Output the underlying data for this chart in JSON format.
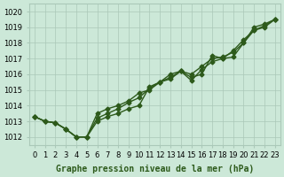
{
  "title": "Graphe pression niveau de la mer (hPa)",
  "xlabel": "Graphe pression niveau de la mer (hPa)",
  "hours": [
    0,
    1,
    2,
    3,
    4,
    5,
    6,
    7,
    8,
    9,
    10,
    11,
    12,
    13,
    14,
    15,
    16,
    17,
    18,
    19,
    20,
    21,
    22,
    23
  ],
  "series1": [
    1013.3,
    1013.0,
    1012.9,
    1012.5,
    1012.0,
    1012.0,
    1013.0,
    1013.3,
    1013.5,
    1013.8,
    1014.0,
    1015.2,
    1015.5,
    1015.8,
    1016.2,
    1015.8,
    1016.0,
    1017.2,
    1017.0,
    1017.1,
    1018.0,
    1019.0,
    1019.2,
    1019.5
  ],
  "series2": [
    1013.3,
    1013.0,
    1012.9,
    1012.5,
    1012.0,
    1012.0,
    1013.5,
    1013.8,
    1014.0,
    1014.3,
    1014.8,
    1015.0,
    1015.5,
    1016.0,
    1016.2,
    1015.6,
    1016.3,
    1016.8,
    1017.0,
    1017.5,
    1018.2,
    1018.8,
    1019.0,
    1019.5
  ],
  "series3": [
    1013.3,
    1013.0,
    1012.9,
    1012.5,
    1012.0,
    1012.0,
    1013.2,
    1013.5,
    1013.8,
    1014.2,
    1014.5,
    1015.1,
    1015.5,
    1015.7,
    1016.2,
    1016.0,
    1016.5,
    1017.0,
    1017.1,
    1017.4,
    1018.0,
    1018.8,
    1019.1,
    1019.5
  ],
  "line_color": "#2d5a1b",
  "bg_color": "#cce8d8",
  "grid_color": "#aac8b8",
  "ylim_min": 1011.5,
  "ylim_max": 1020.5,
  "yticks": [
    1012,
    1013,
    1014,
    1015,
    1016,
    1017,
    1018,
    1019,
    1020
  ],
  "marker": "D",
  "marker_size": 2.5,
  "line_width": 1.0,
  "label_fontsize": 7,
  "tick_fontsize": 6
}
